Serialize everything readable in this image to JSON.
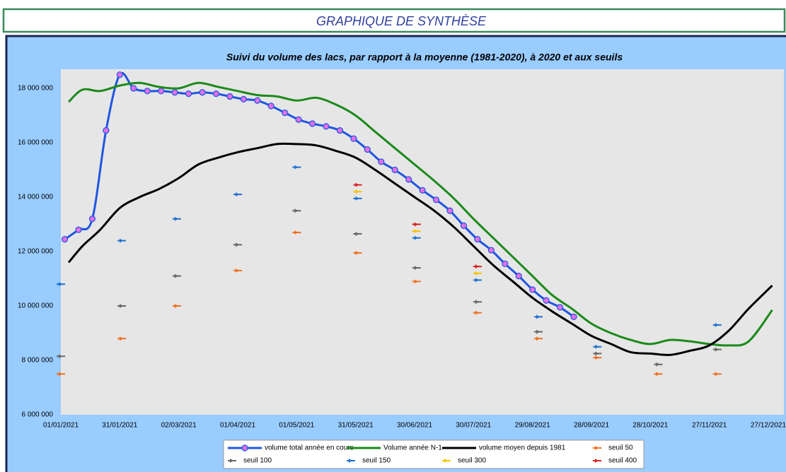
{
  "banner": {
    "title": "GRAPHIQUE DE SYNTHÈSE"
  },
  "chart_data": {
    "type": "line",
    "title": "Suivi du volume des lacs, par rapport à la moyenne (1981-2020), à 2020 et aux seuils",
    "xlim": [
      "01/01/2021",
      "27/12/2021"
    ],
    "xticks": [
      "01/01/2021",
      "31/01/2021",
      "02/03/2021",
      "01/04/2021",
      "01/05/2021",
      "31/05/2021",
      "30/06/2021",
      "30/07/2021",
      "29/08/2021",
      "28/09/2021",
      "28/10/2021",
      "27/11/2021",
      "27/12/2021"
    ],
    "ylim": [
      6000000,
      18700000
    ],
    "yticks": [
      {
        "value": 6000000,
        "label": "6 000 000"
      },
      {
        "value": 8000000,
        "label": "8 000 000"
      },
      {
        "value": 10000000,
        "label": "10 000 000"
      },
      {
        "value": 12000000,
        "label": "12 000 000"
      },
      {
        "value": 14000000,
        "label": "14 000 000"
      },
      {
        "value": 16000000,
        "label": "16 000 000"
      },
      {
        "value": 18000000,
        "label": "18 000 000"
      }
    ],
    "grid": false,
    "legend": "bottom",
    "series": [
      {
        "name": "volume total année en cours",
        "color": "#1f55e0",
        "line": true,
        "marker": "circle",
        "marker_color": "#e070e8",
        "x": [
          "03/01/2021",
          "10/01/2021",
          "17/01/2021",
          "24/01/2021",
          "31/01/2021",
          "07/02/2021",
          "14/02/2021",
          "21/02/2021",
          "28/02/2021",
          "07/03/2021",
          "14/03/2021",
          "21/03/2021",
          "28/03/2021",
          "04/04/2021",
          "11/04/2021",
          "18/04/2021",
          "25/04/2021",
          "02/05/2021",
          "09/05/2021",
          "16/05/2021",
          "23/05/2021",
          "30/05/2021",
          "06/06/2021",
          "13/06/2021",
          "20/06/2021",
          "27/06/2021",
          "04/07/2021",
          "11/07/2021",
          "18/07/2021",
          "25/07/2021",
          "01/08/2021",
          "08/08/2021",
          "15/08/2021",
          "22/08/2021",
          "29/08/2021",
          "05/09/2021",
          "12/09/2021",
          "19/09/2021"
        ],
        "values": [
          12450000,
          12800000,
          13200000,
          16450000,
          18500000,
          18000000,
          17900000,
          17900000,
          17850000,
          17800000,
          17850000,
          17800000,
          17700000,
          17600000,
          17550000,
          17350000,
          17100000,
          16850000,
          16700000,
          16600000,
          16450000,
          16150000,
          15750000,
          15300000,
          15000000,
          14650000,
          14250000,
          13900000,
          13500000,
          12950000,
          12450000,
          12050000,
          11550000,
          11100000,
          10600000,
          10200000,
          9950000,
          9600000
        ]
      },
      {
        "name": "Volume année N-1",
        "color": "#1a8a1a",
        "line": true,
        "x": [
          "05/01/2021",
          "12/01/2021",
          "21/01/2021",
          "31/01/2021",
          "10/02/2021",
          "20/02/2021",
          "02/03/2021",
          "12/03/2021",
          "22/03/2021",
          "01/04/2021",
          "11/04/2021",
          "21/04/2021",
          "01/05/2021",
          "11/05/2021",
          "21/05/2021",
          "31/05/2021",
          "10/06/2021",
          "20/06/2021",
          "30/06/2021",
          "10/07/2021",
          "20/07/2021",
          "30/07/2021",
          "09/08/2021",
          "19/08/2021",
          "29/08/2021",
          "08/09/2021",
          "18/09/2021",
          "28/09/2021",
          "08/10/2021",
          "18/10/2021",
          "28/10/2021",
          "07/11/2021",
          "17/11/2021",
          "27/11/2021",
          "07/12/2021",
          "17/12/2021",
          "29/12/2021"
        ],
        "values": [
          17500000,
          17950000,
          17900000,
          18100000,
          18200000,
          18050000,
          18000000,
          18200000,
          18050000,
          17900000,
          17750000,
          17700000,
          17550000,
          17650000,
          17400000,
          17000000,
          16400000,
          15800000,
          15200000,
          14600000,
          13950000,
          13200000,
          12500000,
          11800000,
          11100000,
          10400000,
          9900000,
          9350000,
          9000000,
          8750000,
          8600000,
          8750000,
          8700000,
          8600000,
          8550000,
          8700000,
          9850000
        ]
      },
      {
        "name": "volume moyen depuis 1981",
        "color": "#000000",
        "line": true,
        "x": [
          "05/01/2021",
          "12/01/2021",
          "21/01/2021",
          "31/01/2021",
          "10/02/2021",
          "20/02/2021",
          "02/03/2021",
          "12/03/2021",
          "22/03/2021",
          "01/04/2021",
          "11/04/2021",
          "21/04/2021",
          "01/05/2021",
          "11/05/2021",
          "21/05/2021",
          "31/05/2021",
          "10/06/2021",
          "20/06/2021",
          "30/06/2021",
          "10/07/2021",
          "20/07/2021",
          "30/07/2021",
          "09/08/2021",
          "19/08/2021",
          "29/08/2021",
          "08/09/2021",
          "18/09/2021",
          "28/09/2021",
          "08/10/2021",
          "18/10/2021",
          "28/10/2021",
          "07/11/2021",
          "17/11/2021",
          "27/11/2021",
          "07/12/2021",
          "17/12/2021",
          "29/12/2021"
        ],
        "values": [
          11600000,
          12200000,
          12800000,
          13600000,
          14000000,
          14300000,
          14700000,
          15200000,
          15450000,
          15650000,
          15800000,
          15950000,
          15950000,
          15900000,
          15700000,
          15450000,
          15000000,
          14500000,
          14000000,
          13500000,
          12900000,
          12200000,
          11500000,
          10900000,
          10300000,
          9800000,
          9350000,
          8900000,
          8600000,
          8300000,
          8250000,
          8200000,
          8350000,
          8550000,
          9100000,
          9900000,
          10750000
        ]
      },
      {
        "name": "seuil 50",
        "color": "#f07020",
        "line": false,
        "marker": "dash",
        "x": [
          "01/01/2021",
          "01/02/2021",
          "01/03/2021",
          "01/04/2021",
          "01/05/2021",
          "01/06/2021",
          "01/07/2021",
          "01/08/2021",
          "01/09/2021",
          "01/10/2021",
          "01/11/2021",
          "01/12/2021"
        ],
        "values": [
          7500000,
          8800000,
          10000000,
          11300000,
          12700000,
          11950000,
          10900000,
          9750000,
          8800000,
          8100000,
          7500000,
          7500000
        ]
      },
      {
        "name": "seuil 100",
        "color": "#666666",
        "line": false,
        "marker": "dash",
        "x": [
          "01/01/2021",
          "01/02/2021",
          "01/03/2021",
          "01/04/2021",
          "01/05/2021",
          "01/06/2021",
          "01/07/2021",
          "01/08/2021",
          "01/09/2021",
          "01/10/2021",
          "01/11/2021",
          "01/12/2021"
        ],
        "values": [
          8150000,
          10000000,
          11100000,
          12250000,
          13500000,
          12650000,
          11400000,
          10150000,
          9050000,
          8250000,
          7850000,
          8400000
        ]
      },
      {
        "name": "seuil 150",
        "color": "#1f6fd0",
        "line": false,
        "marker": "dash",
        "x": [
          "01/01/2021",
          "01/02/2021",
          "01/03/2021",
          "01/04/2021",
          "01/05/2021",
          "01/06/2021",
          "01/07/2021",
          "01/08/2021",
          "01/09/2021",
          "01/10/2021",
          "01/11/2021",
          "01/12/2021"
        ],
        "values": [
          10800000,
          12400000,
          13200000,
          14100000,
          15100000,
          13950000,
          12500000,
          10950000,
          9600000,
          8500000,
          null,
          9300000
        ]
      },
      {
        "name": "seuil 300",
        "color": "#f5c400",
        "line": false,
        "marker": "dash",
        "x": [
          "01/06/2021",
          "01/07/2021",
          "01/08/2021"
        ],
        "values": [
          14200000,
          12750000,
          11200000
        ]
      },
      {
        "name": "seuil 400",
        "color": "#d42020",
        "line": false,
        "marker": "dash",
        "x": [
          "01/06/2021",
          "01/07/2021",
          "01/08/2021"
        ],
        "values": [
          14450000,
          13000000,
          11450000
        ]
      }
    ]
  }
}
